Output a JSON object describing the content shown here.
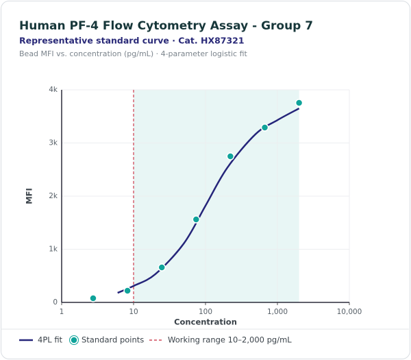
{
  "chart_data": {
    "type": "scatter",
    "title": "Human PF-4 Flow Cytometry Assay - Group 7",
    "subtitle": "Representative standard curve · Cat. HX87321",
    "caption": "Bead MFI vs. concentration (pg/mL) · 4-parameter logistic fit",
    "x_label": "Concentration",
    "y_label": "MFI",
    "xscale": "log",
    "xlim": [
      1,
      10000
    ],
    "xticks": [
      1,
      10,
      100,
      {
        "value": 1000,
        "label": "1,000"
      },
      {
        "value": 10000,
        "label": "10,000"
      }
    ],
    "ylim": [
      0,
      4000
    ],
    "yticks": [
      0,
      {
        "value": 1000,
        "label": "1k"
      },
      {
        "value": 2000,
        "label": "2k"
      },
      {
        "value": 3000,
        "label": "3k"
      },
      {
        "value": 4000,
        "label": "4k"
      }
    ],
    "grid": true,
    "series": [
      {
        "name": "4PL fit",
        "kind": "line",
        "color": "#25257a",
        "x": [
          6,
          10,
          20,
          50,
          100,
          200,
          500,
          1000,
          2000
        ],
        "values": [
          180,
          310,
          530,
          1110,
          1820,
          2530,
          3170,
          3430,
          3650
        ]
      },
      {
        "name": "Standard points",
        "kind": "points",
        "color": "#0fa39a",
        "x": [
          2.74,
          8.23,
          24.7,
          74.1,
          222,
          667,
          2000
        ],
        "values": [
          77,
          219,
          658,
          1561,
          2748,
          3290,
          3755
        ]
      }
    ],
    "working_range": {
      "label": "Working range 10–2,000 pg/mL",
      "range": [
        10,
        2000
      ],
      "color": "#d04a5a",
      "fill": "#e8f6f5"
    }
  }
}
